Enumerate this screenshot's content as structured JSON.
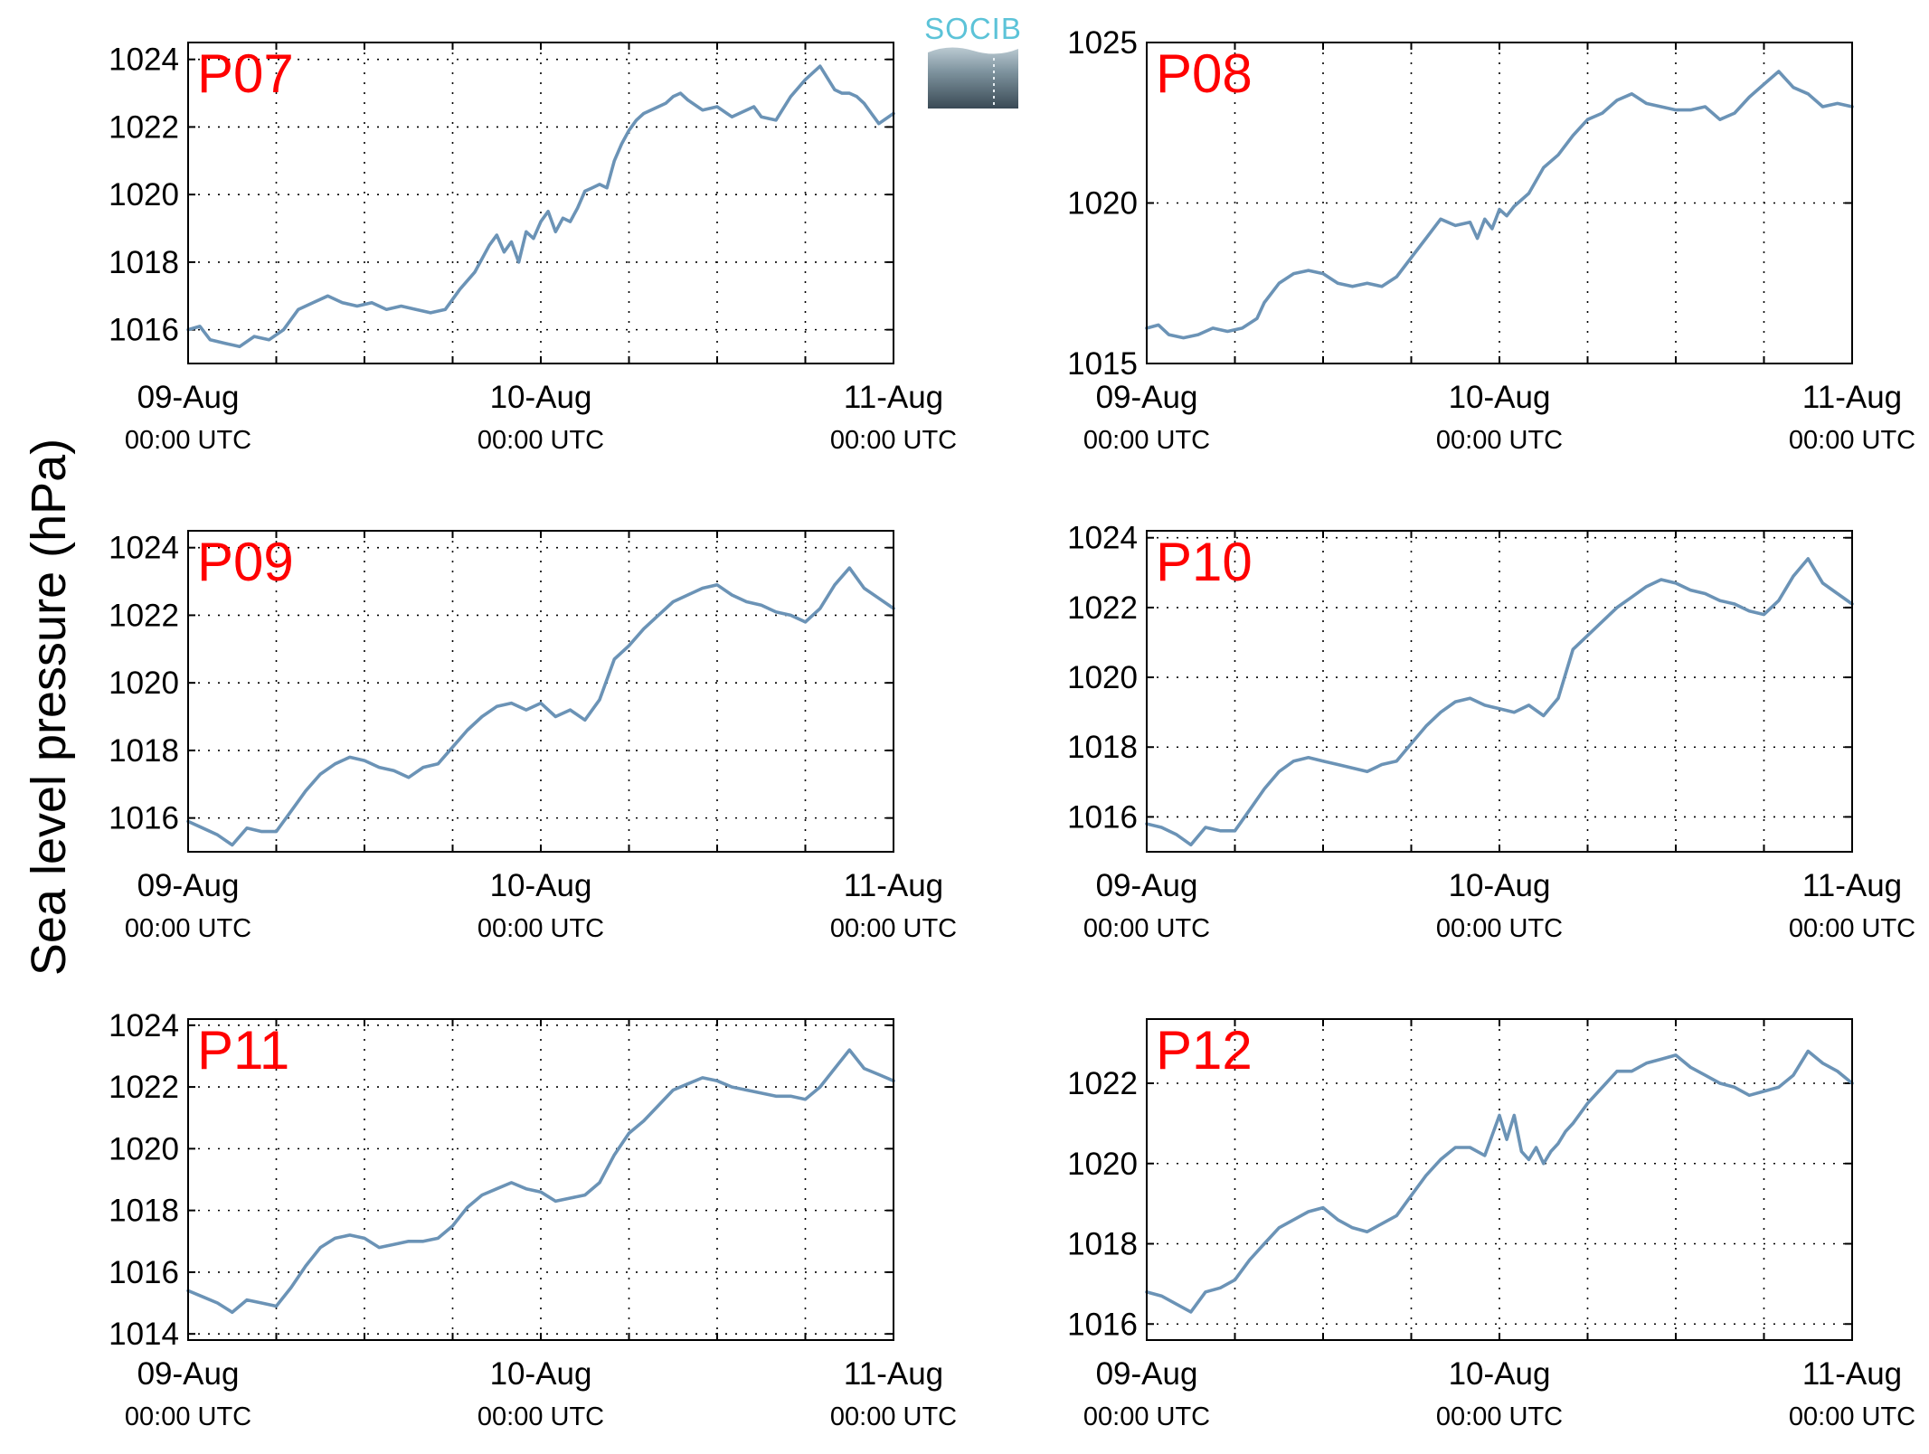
{
  "figure": {
    "ylabel": "Sea level pressure (hPa)",
    "logo_text": "SOCIB",
    "line_color": "#6b93b6",
    "label_color": "#ff0000"
  },
  "chart_data": [
    {
      "type": "line",
      "label": "P07",
      "x_ticks": [
        {
          "date": "09-Aug",
          "time": "00:00 UTC"
        },
        {
          "date": "10-Aug",
          "time": "00:00 UTC"
        },
        {
          "date": "11-Aug",
          "time": "00:00 UTC"
        }
      ],
      "xlim_hours": [
        0,
        48
      ],
      "ylim": [
        1015,
        1024.5
      ],
      "yticks": [
        1016,
        1018,
        1020,
        1022,
        1024
      ],
      "grid": true,
      "x_hours": [
        0,
        0.8,
        1.5,
        2.5,
        3.5,
        4.5,
        5.5,
        6.5,
        7.5,
        8.5,
        9.5,
        10.5,
        11.5,
        12.5,
        13.5,
        14.5,
        15.5,
        16.5,
        17.5,
        18.5,
        19.5,
        20.5,
        21,
        21.5,
        22,
        22.5,
        23,
        23.5,
        24,
        24.5,
        25,
        25.5,
        26,
        26.5,
        27,
        27.5,
        28,
        28.5,
        29,
        29.5,
        30,
        30.5,
        31,
        31.5,
        32,
        32.5,
        33,
        33.5,
        34,
        35,
        36,
        37,
        38,
        38.5,
        39,
        40,
        41,
        42,
        43,
        44,
        44.5,
        45,
        45.5,
        46,
        46.5,
        47,
        48
      ],
      "values": [
        1016.0,
        1016.1,
        1015.7,
        1015.6,
        1015.5,
        1015.8,
        1015.7,
        1016.0,
        1016.6,
        1016.8,
        1017.0,
        1016.8,
        1016.7,
        1016.8,
        1016.6,
        1016.7,
        1016.6,
        1016.5,
        1016.6,
        1017.2,
        1017.7,
        1018.5,
        1018.8,
        1018.3,
        1018.6,
        1018.0,
        1018.9,
        1018.7,
        1019.2,
        1019.5,
        1018.9,
        1019.3,
        1019.2,
        1019.6,
        1020.1,
        1020.2,
        1020.3,
        1020.2,
        1021.0,
        1021.5,
        1021.9,
        1022.2,
        1022.4,
        1022.5,
        1022.6,
        1022.7,
        1022.9,
        1023.0,
        1022.8,
        1022.5,
        1022.6,
        1022.3,
        1022.5,
        1022.6,
        1022.3,
        1022.2,
        1022.9,
        1023.4,
        1023.8,
        1023.1,
        1023.0,
        1023.0,
        1022.9,
        1022.7,
        1022.4,
        1022.1,
        1022.4
      ]
    },
    {
      "type": "line",
      "label": "P08",
      "x_ticks": [
        {
          "date": "09-Aug",
          "time": "00:00 UTC"
        },
        {
          "date": "10-Aug",
          "time": "00:00 UTC"
        },
        {
          "date": "11-Aug",
          "time": "00:00 UTC"
        }
      ],
      "xlim_hours": [
        0,
        48
      ],
      "ylim": [
        1015,
        1025
      ],
      "yticks": [
        1015,
        1020,
        1025
      ],
      "grid": true,
      "x_hours": [
        0,
        0.8,
        1.5,
        2.5,
        3.5,
        4.5,
        5.5,
        6.5,
        7.5,
        8,
        9,
        10,
        11,
        12,
        13,
        14,
        15,
        16,
        17,
        18,
        19,
        20,
        21,
        22,
        22.5,
        23,
        23.5,
        24,
        24.5,
        25,
        26,
        27,
        28,
        29,
        30,
        31,
        32,
        33,
        34,
        35,
        36,
        37,
        38,
        39,
        40,
        41,
        42,
        43,
        44,
        45,
        46,
        47,
        48
      ],
      "values": [
        1016.1,
        1016.2,
        1015.9,
        1015.8,
        1015.9,
        1016.1,
        1016.0,
        1016.1,
        1016.4,
        1016.9,
        1017.5,
        1017.8,
        1017.9,
        1017.8,
        1017.5,
        1017.4,
        1017.5,
        1017.4,
        1017.7,
        1018.3,
        1018.9,
        1019.5,
        1019.3,
        1019.4,
        1018.9,
        1019.5,
        1019.2,
        1019.8,
        1019.6,
        1019.9,
        1020.3,
        1021.1,
        1021.5,
        1022.1,
        1022.6,
        1022.8,
        1023.2,
        1023.4,
        1023.1,
        1023.0,
        1022.9,
        1022.9,
        1023.0,
        1022.6,
        1022.8,
        1023.3,
        1023.7,
        1024.1,
        1023.6,
        1023.4,
        1023.0,
        1023.1,
        1023.0
      ]
    },
    {
      "type": "line",
      "label": "P09",
      "x_ticks": [
        {
          "date": "09-Aug",
          "time": "00:00 UTC"
        },
        {
          "date": "10-Aug",
          "time": "00:00 UTC"
        },
        {
          "date": "11-Aug",
          "time": "00:00 UTC"
        }
      ],
      "xlim_hours": [
        0,
        48
      ],
      "ylim": [
        1015,
        1024.5
      ],
      "yticks": [
        1016,
        1018,
        1020,
        1022,
        1024
      ],
      "grid": true,
      "x_hours": [
        0,
        1,
        2,
        3,
        4,
        5,
        6,
        7,
        8,
        9,
        10,
        11,
        12,
        13,
        14,
        15,
        16,
        17,
        18,
        19,
        20,
        21,
        22,
        23,
        24,
        25,
        26,
        27,
        28,
        29,
        30,
        31,
        32,
        33,
        34,
        35,
        36,
        37,
        38,
        39,
        40,
        41,
        42,
        43,
        44,
        45,
        46,
        47,
        48
      ],
      "values": [
        1015.9,
        1015.7,
        1015.5,
        1015.2,
        1015.7,
        1015.6,
        1015.6,
        1016.2,
        1016.8,
        1017.3,
        1017.6,
        1017.8,
        1017.7,
        1017.5,
        1017.4,
        1017.2,
        1017.5,
        1017.6,
        1018.1,
        1018.6,
        1019.0,
        1019.3,
        1019.4,
        1019.2,
        1019.4,
        1019.0,
        1019.2,
        1018.9,
        1019.5,
        1020.7,
        1021.1,
        1021.6,
        1022.0,
        1022.4,
        1022.6,
        1022.8,
        1022.9,
        1022.6,
        1022.4,
        1022.3,
        1022.1,
        1022.0,
        1021.8,
        1022.2,
        1022.9,
        1023.4,
        1022.8,
        1022.5,
        1022.2
      ]
    },
    {
      "type": "line",
      "label": "P10",
      "x_ticks": [
        {
          "date": "09-Aug",
          "time": "00:00 UTC"
        },
        {
          "date": "10-Aug",
          "time": "00:00 UTC"
        },
        {
          "date": "11-Aug",
          "time": "00:00 UTC"
        }
      ],
      "xlim_hours": [
        0,
        48
      ],
      "ylim": [
        1015,
        1024.2
      ],
      "yticks": [
        1016,
        1018,
        1020,
        1022,
        1024
      ],
      "grid": true,
      "x_hours": [
        0,
        1,
        2,
        3,
        4,
        5,
        6,
        7,
        8,
        9,
        10,
        11,
        12,
        13,
        14,
        15,
        16,
        17,
        18,
        19,
        20,
        21,
        22,
        23,
        24,
        25,
        26,
        27,
        28,
        29,
        30,
        31,
        32,
        33,
        34,
        35,
        36,
        37,
        38,
        39,
        40,
        41,
        42,
        43,
        44,
        45,
        46,
        47,
        48
      ],
      "values": [
        1015.8,
        1015.7,
        1015.5,
        1015.2,
        1015.7,
        1015.6,
        1015.6,
        1016.2,
        1016.8,
        1017.3,
        1017.6,
        1017.7,
        1017.6,
        1017.5,
        1017.4,
        1017.3,
        1017.5,
        1017.6,
        1018.1,
        1018.6,
        1019.0,
        1019.3,
        1019.4,
        1019.2,
        1019.1,
        1019.0,
        1019.2,
        1018.9,
        1019.4,
        1020.8,
        1021.2,
        1021.6,
        1022.0,
        1022.3,
        1022.6,
        1022.8,
        1022.7,
        1022.5,
        1022.4,
        1022.2,
        1022.1,
        1021.9,
        1021.8,
        1022.2,
        1022.9,
        1023.4,
        1022.7,
        1022.4,
        1022.1
      ]
    },
    {
      "type": "line",
      "label": "P11",
      "x_ticks": [
        {
          "date": "09-Aug",
          "time": "00:00 UTC"
        },
        {
          "date": "10-Aug",
          "time": "00:00 UTC"
        },
        {
          "date": "11-Aug",
          "time": "00:00 UTC"
        }
      ],
      "xlim_hours": [
        0,
        48
      ],
      "ylim": [
        1013.8,
        1024.2
      ],
      "yticks": [
        1014,
        1016,
        1018,
        1020,
        1022,
        1024
      ],
      "grid": true,
      "x_hours": [
        0,
        1,
        2,
        3,
        4,
        5,
        6,
        7,
        8,
        9,
        10,
        11,
        12,
        13,
        14,
        15,
        16,
        17,
        18,
        19,
        20,
        21,
        22,
        23,
        24,
        25,
        26,
        27,
        28,
        29,
        30,
        31,
        32,
        33,
        34,
        35,
        36,
        37,
        38,
        39,
        40,
        41,
        42,
        43,
        44,
        45,
        46,
        47,
        48
      ],
      "values": [
        1015.4,
        1015.2,
        1015.0,
        1014.7,
        1015.1,
        1015.0,
        1014.9,
        1015.5,
        1016.2,
        1016.8,
        1017.1,
        1017.2,
        1017.1,
        1016.8,
        1016.9,
        1017.0,
        1017.0,
        1017.1,
        1017.5,
        1018.1,
        1018.5,
        1018.7,
        1018.9,
        1018.7,
        1018.6,
        1018.3,
        1018.4,
        1018.5,
        1018.9,
        1019.8,
        1020.5,
        1020.9,
        1021.4,
        1021.9,
        1022.1,
        1022.3,
        1022.2,
        1022.0,
        1021.9,
        1021.8,
        1021.7,
        1021.7,
        1021.6,
        1022.0,
        1022.6,
        1023.2,
        1022.6,
        1022.4,
        1022.2
      ]
    },
    {
      "type": "line",
      "label": "P12",
      "x_ticks": [
        {
          "date": "09-Aug",
          "time": "00:00 UTC"
        },
        {
          "date": "10-Aug",
          "time": "00:00 UTC"
        },
        {
          "date": "11-Aug",
          "time": "00:00 UTC"
        }
      ],
      "xlim_hours": [
        0,
        48
      ],
      "ylim": [
        1015.6,
        1023.6
      ],
      "yticks": [
        1016,
        1018,
        1020,
        1022
      ],
      "grid": true,
      "x_hours": [
        0,
        1,
        2,
        3,
        4,
        5,
        6,
        7,
        8,
        9,
        10,
        11,
        12,
        13,
        14,
        15,
        16,
        17,
        18,
        19,
        20,
        21,
        22,
        23,
        24,
        24.5,
        25,
        25.5,
        26,
        26.5,
        27,
        27.5,
        28,
        28.5,
        29,
        30,
        31,
        32,
        33,
        34,
        35,
        36,
        37,
        38,
        39,
        40,
        41,
        42,
        43,
        44,
        45,
        46,
        47,
        48
      ],
      "values": [
        1016.8,
        1016.7,
        1016.5,
        1016.3,
        1016.8,
        1016.9,
        1017.1,
        1017.6,
        1018.0,
        1018.4,
        1018.6,
        1018.8,
        1018.9,
        1018.6,
        1018.4,
        1018.3,
        1018.5,
        1018.7,
        1019.2,
        1019.7,
        1020.1,
        1020.4,
        1020.4,
        1020.2,
        1021.2,
        1020.6,
        1021.2,
        1020.3,
        1020.1,
        1020.4,
        1020.0,
        1020.3,
        1020.5,
        1020.8,
        1021.0,
        1021.5,
        1021.9,
        1022.3,
        1022.3,
        1022.5,
        1022.6,
        1022.7,
        1022.4,
        1022.2,
        1022.0,
        1021.9,
        1021.7,
        1021.8,
        1021.9,
        1022.2,
        1022.8,
        1022.5,
        1022.3,
        1022.0
      ]
    }
  ]
}
